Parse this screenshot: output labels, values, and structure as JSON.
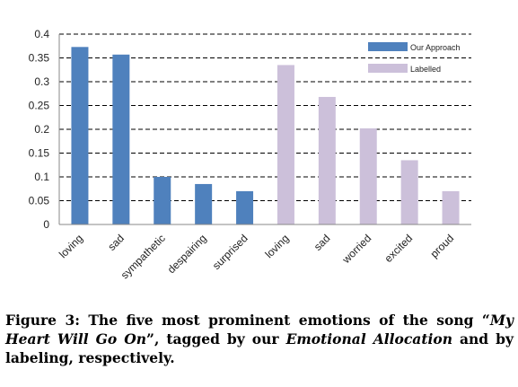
{
  "chart_data": {
    "type": "bar",
    "categories": [
      "loving",
      "sad",
      "sympathetic",
      "despairing",
      "surprised",
      "loving",
      "sad",
      "worried",
      "excited",
      "proud"
    ],
    "series": [
      {
        "name": "Our Approach",
        "color": "#4f81bd",
        "values": [
          0.373,
          0.357,
          0.1,
          0.085,
          0.07,
          null,
          null,
          null,
          null,
          null
        ]
      },
      {
        "name": "Labelled",
        "color": "#ccc0da",
        "values": [
          null,
          null,
          null,
          null,
          null,
          0.335,
          0.268,
          0.202,
          0.135,
          0.07
        ]
      }
    ],
    "ylim": [
      0,
      0.4
    ],
    "yticks": [
      "0",
      "0.05",
      "0.1",
      "0.15",
      "0.2",
      "0.25",
      "0.3",
      "0.35",
      "0.4"
    ],
    "ytick_values": [
      0,
      0.05,
      0.1,
      0.15,
      0.2,
      0.25,
      0.3,
      0.35,
      0.4
    ],
    "grid": true,
    "legend_position": "top-right"
  },
  "caption": {
    "part1": "Figure 3: The five most prominent emotions of the song “",
    "italic1": "My Heart Will Go On",
    "part2": "”, tagged by our ",
    "italic2": "Emotional Allocation",
    "part3": " and by labeling, respectively."
  }
}
